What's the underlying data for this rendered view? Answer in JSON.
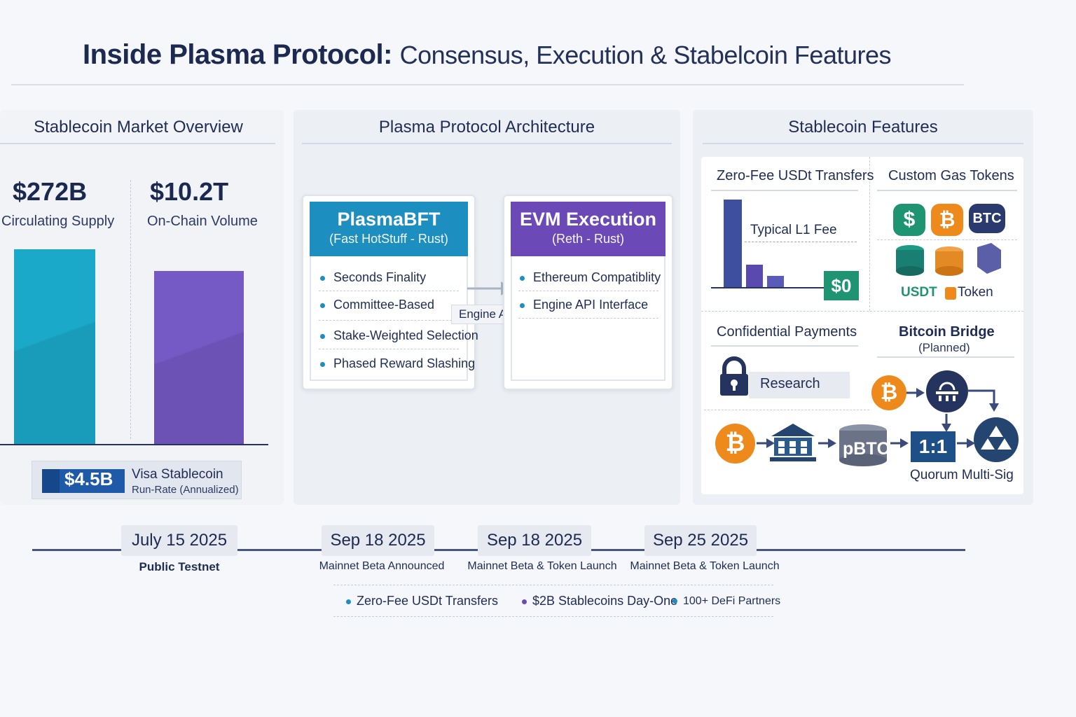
{
  "header": {
    "title_strong": "Inside Plasma Protocol:",
    "title_rest": "Consensus, Execution & Stabelcoin Features"
  },
  "market": {
    "title": "Stablecoin Market Overview",
    "stat1_value": "$272B",
    "stat1_label": "Circulating Supply",
    "stat2_value": "$10.2T",
    "stat2_label": "On-Chain Volume",
    "visa_value": "$4.5B",
    "visa_label_1": "Visa Stablecoin",
    "visa_label_2": "Run-Rate (Annualized)",
    "colors": {
      "supply": "#1aa9c9",
      "volume": "#7559c4"
    }
  },
  "chart_data": {
    "type": "bar",
    "categories": [
      "Circulating Supply",
      "On-Chain Volume"
    ],
    "values": [
      272,
      10200
    ],
    "bar_levels": [
      1.0,
      0.89
    ],
    "title": "",
    "xlabel": "",
    "ylabel": ""
  },
  "architecture": {
    "title": "Plasma Protocol Architecture",
    "consensus": {
      "name": "PlasmaBFT",
      "subtitle": "(Fast HotStuff - Rust)",
      "color": "#1c8ec0",
      "items": [
        "Seconds Finality",
        "Committee-Based",
        "Stake-Weighted Selection",
        "Phased Reward Slashing"
      ]
    },
    "connector_label": "Engine API",
    "execution": {
      "name": "EVM Execution",
      "subtitle": "(Reth - Rust)",
      "color": "#6b49b6",
      "items": [
        "Ethereum Compatiblity",
        "Engine API Interface"
      ]
    }
  },
  "features": {
    "title": "Stablecoin Features",
    "zero_fee": {
      "title": "Zero-Fee USDt Transfers",
      "fee_label": "Typical L1 Fee",
      "zero_label": "$0"
    },
    "gas_tokens": {
      "title": "Custom Gas Tokens",
      "coin_dollar": "$",
      "coin_btc_symbol": "₿",
      "coin_btc_text": "BTC",
      "usdt_label": "USDT",
      "token_label": "Token"
    },
    "confidential": {
      "title": "Confidential Payments",
      "status": "Research"
    },
    "bridge": {
      "title": "Bitcoin Bridge",
      "subtitle": "(Planned)",
      "pbtc": "pBTC",
      "ratio": "1:1",
      "quorum": "Quorum Multi-Sig"
    }
  },
  "timeline": {
    "milestones": [
      {
        "date": "July 15 2025",
        "label": "Public Testnet"
      },
      {
        "date": "Sep 18 2025",
        "label": "Mainnet Beta Announced"
      },
      {
        "date": "Sep 18 2025",
        "label": "Mainnet Beta & Token Launch"
      },
      {
        "date": "Sep 25 2025",
        "label": "Mainnet Beta & Token Launch"
      }
    ],
    "highlights": [
      "Zero-Fee USDt Transfers",
      "$2B Stablecoins Day-One",
      "100+ DeFi Partners"
    ]
  }
}
